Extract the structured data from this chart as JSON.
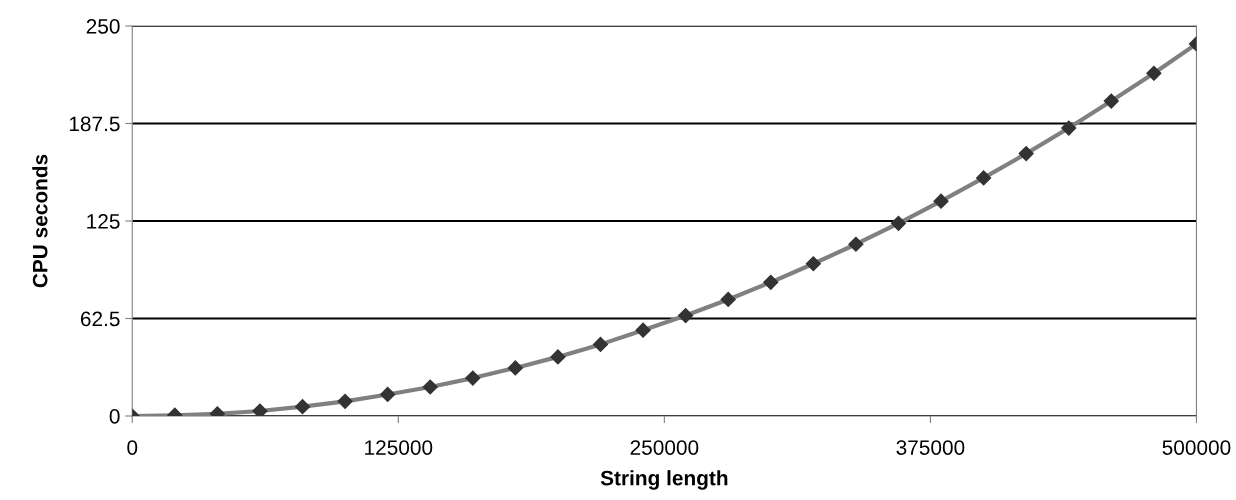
{
  "chart_data": {
    "type": "line",
    "xlabel": "String length",
    "ylabel": "CPU seconds",
    "x": [
      0,
      20000,
      40000,
      60000,
      80000,
      100000,
      120000,
      140000,
      160000,
      180000,
      200000,
      220000,
      240000,
      260000,
      280000,
      300000,
      320000,
      340000,
      360000,
      380000,
      400000,
      420000,
      440000,
      460000,
      480000,
      500000
    ],
    "series": [
      {
        "color": "#808080",
        "values": [
          0,
          0.5,
          1.4,
          3.2,
          6.0,
          9.4,
          13.8,
          18.6,
          24.3,
          30.8,
          37.9,
          45.9,
          55.0,
          64.4,
          74.7,
          85.7,
          97.6,
          110.1,
          123.5,
          137.7,
          152.6,
          168.2,
          184.6,
          201.9,
          219.7,
          238.5
        ]
      }
    ],
    "marker": "diamond",
    "line_style": "solid",
    "grid": "y",
    "xlim": [
      0,
      500000
    ],
    "xticks": [
      0,
      125000,
      250000,
      375000,
      500000
    ],
    "ylim": [
      0,
      250
    ],
    "yticks": [
      0,
      62.5,
      125,
      187.5,
      250
    ]
  }
}
